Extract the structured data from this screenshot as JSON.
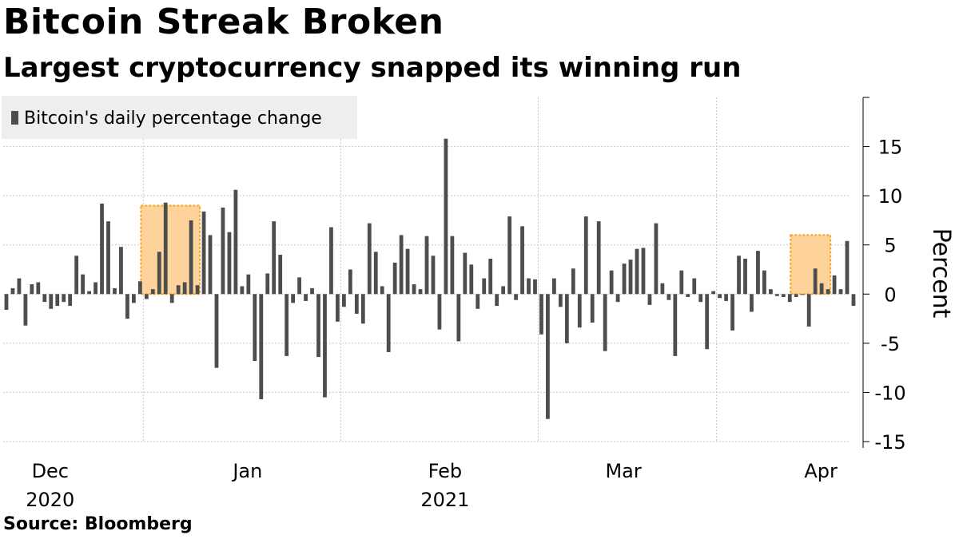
{
  "header": {
    "title": "Bitcoin Streak Broken",
    "subtitle": "Largest cryptocurrency snapped its winning run"
  },
  "footer": {
    "source": "Source: Bloomberg"
  },
  "colors": {
    "bar": "#4d4d4d",
    "highlight": "#fdd39b",
    "highlight_border": "#f5a623",
    "legend_bg": "#eeeeee",
    "grid": "#c8c8c8"
  },
  "chart_data": {
    "type": "bar",
    "title": "Bitcoin Streak Broken",
    "subtitle": "Largest cryptocurrency snapped its winning run",
    "ylabel": "Percent",
    "ylim": [
      -15,
      20
    ],
    "yticks": [
      15,
      10,
      5,
      0,
      -5,
      -10,
      -15
    ],
    "ytick_labels": [
      "15",
      "10",
      "5",
      "0",
      "-5",
      "-10",
      "-15"
    ],
    "grid": true,
    "legend": {
      "position": "top-left",
      "entries": [
        "Bitcoin's daily percentage change"
      ]
    },
    "x_start": "2020-11-24",
    "x_end": "2021-04-06",
    "xtick_labels": [
      {
        "date": "2020-12-01",
        "label": "Dec",
        "year": "2020"
      },
      {
        "date": "2021-01-01",
        "label": "Jan",
        "year": ""
      },
      {
        "date": "2021-02-01",
        "label": "Feb",
        "year": "2021"
      },
      {
        "date": "2021-03-01",
        "label": "Mar",
        "year": ""
      },
      {
        "date": "2021-04-01",
        "label": "Apr",
        "year": ""
      }
    ],
    "gridline_dates": [
      "2020-12-16",
      "2021-01-16",
      "2021-02-16",
      "2021-03-16"
    ],
    "highlights": [
      {
        "start": "2020-12-16",
        "end": "2020-12-24",
        "ymin": 0,
        "ymax": 9
      },
      {
        "start": "2021-03-28",
        "end": "2021-04-02",
        "ymin": 0,
        "ymax": 6
      }
    ],
    "series": [
      {
        "start": "2020-11-24",
        "values": [
          -1.6,
          0.6,
          1.6,
          -3.2,
          1.0,
          1.2,
          -0.8,
          -1.5,
          -1.2,
          -0.8,
          -1.2,
          3.9,
          2.0,
          0.3,
          1.2,
          9.2,
          7.4,
          0.6,
          4.8,
          -2.5,
          -0.9,
          1.3,
          -0.5,
          0.5,
          4.3,
          9.3,
          -0.9,
          0.9,
          1.2,
          7.5,
          0.9,
          8.4,
          6.0,
          -7.5,
          8.8,
          6.3,
          10.6,
          0.8,
          2.0,
          -6.8,
          -10.7,
          2.1,
          7.4,
          4.0,
          -6.3,
          -0.9,
          1.7,
          -0.7,
          0.6,
          -6.4,
          -10.5,
          6.8,
          -2.8,
          -1.3,
          2.5,
          -2.0,
          -3.0,
          7.2,
          4.3,
          0.8,
          -5.9,
          3.2,
          6.0,
          4.6,
          1.0,
          0.5,
          5.9,
          3.9,
          -3.6,
          15.8,
          5.9,
          -4.8,
          4.2,
          3.0,
          -1.5,
          1.6,
          3.6,
          -1.2,
          0.8,
          7.9,
          -0.6,
          6.9,
          1.6,
          1.5,
          -4.1,
          -12.7,
          1.6,
          -1.3,
          -5.0,
          2.6,
          -3.4,
          7.9,
          -2.9,
          7.4,
          -5.8,
          2.4,
          -0.8,
          3.1,
          3.5,
          4.6,
          4.7,
          -1.1,
          7.2,
          1.1,
          -0.6,
          -6.3,
          2.4,
          -0.3,
          1.6,
          -0.8,
          -5.6,
          0.3,
          -0.4,
          -0.7,
          -3.7,
          3.9,
          3.6,
          -1.8,
          4.4,
          2.4,
          0.5,
          -0.2,
          -0.3,
          -0.8,
          -0.3,
          0.0,
          -3.3,
          2.6,
          1.1,
          0.5,
          1.9,
          0.5,
          5.4,
          -1.2
        ]
      }
    ]
  }
}
